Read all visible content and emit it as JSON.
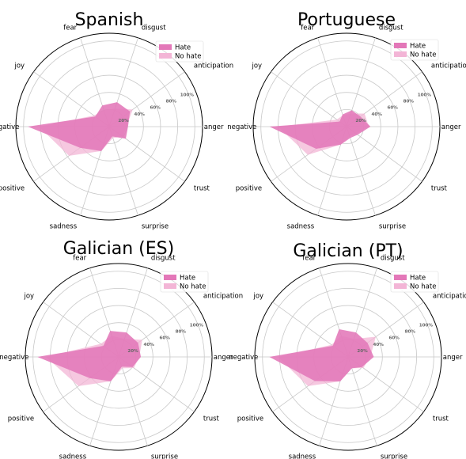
{
  "colors": {
    "hate": "#e377b8",
    "no_hate": "#f3b5d6",
    "grid": "#c8c8c8",
    "outer_ring": "#000000",
    "tick_text": "#666666"
  },
  "chart_data": [
    {
      "type": "radar",
      "title": "Spanish",
      "categories": [
        "anger",
        "anticipation",
        "disgust",
        "fear",
        "joy",
        "negative",
        "positive",
        "sadness",
        "surprise",
        "trust"
      ],
      "radial_ticks": [
        "20%",
        "40%",
        "60%",
        "80%",
        "100%"
      ],
      "rlim": [
        0,
        100
      ],
      "grid": true,
      "legend_position": "top-right",
      "series": [
        {
          "name": "Hate",
          "values": [
            22,
            30,
            30,
            26,
            20,
            95,
            42,
            30,
            12,
            24
          ]
        },
        {
          "name": "No hate",
          "values": [
            20,
            34,
            22,
            20,
            22,
            82,
            58,
            30,
            14,
            20
          ]
        }
      ]
    },
    {
      "type": "radar",
      "title": "Portuguese",
      "categories": [
        "anger",
        "anticipation",
        "disgust",
        "fear",
        "joy",
        "negative",
        "positive",
        "sadness",
        "surprise",
        "trust"
      ],
      "radial_ticks": [
        "20%",
        "40%",
        "60%",
        "80%",
        "100%"
      ],
      "rlim": [
        0,
        100
      ],
      "grid": true,
      "legend_position": "top-right",
      "series": [
        {
          "name": "Hate",
          "values": [
            28,
            20,
            20,
            15,
            10,
            90,
            44,
            22,
            14,
            16
          ]
        },
        {
          "name": "No hate",
          "values": [
            26,
            26,
            16,
            14,
            14,
            80,
            56,
            22,
            12,
            14
          ]
        }
      ]
    },
    {
      "type": "radar",
      "title": "Galician (ES)",
      "categories": [
        "anger",
        "anticipation",
        "disgust",
        "fear",
        "joy",
        "negative",
        "positive",
        "sadness",
        "surprise",
        "trust"
      ],
      "radial_ticks": [
        "20%",
        "40%",
        "60%",
        "80%",
        "100%"
      ],
      "rlim": [
        0,
        100
      ],
      "grid": true,
      "legend_position": "top-right",
      "series": [
        {
          "name": "Hate",
          "values": [
            26,
            28,
            30,
            32,
            22,
            95,
            42,
            30,
            12,
            20
          ]
        },
        {
          "name": "No hate",
          "values": [
            24,
            34,
            22,
            26,
            26,
            85,
            58,
            30,
            14,
            22
          ]
        }
      ]
    },
    {
      "type": "radar",
      "title": "Galician (PT)",
      "categories": [
        "anger",
        "anticipation",
        "disgust",
        "fear",
        "joy",
        "negative",
        "positive",
        "sadness",
        "surprise",
        "trust"
      ],
      "radial_ticks": [
        "20%",
        "40%",
        "60%",
        "80%",
        "100%"
      ],
      "rlim": [
        0,
        100
      ],
      "grid": true,
      "legend_position": "top-right",
      "series": [
        {
          "name": "Hate",
          "values": [
            30,
            28,
            30,
            34,
            22,
            92,
            48,
            30,
            14,
            20
          ]
        },
        {
          "name": "No hate",
          "values": [
            26,
            40,
            22,
            26,
            24,
            82,
            58,
            30,
            14,
            22
          ]
        }
      ]
    }
  ]
}
